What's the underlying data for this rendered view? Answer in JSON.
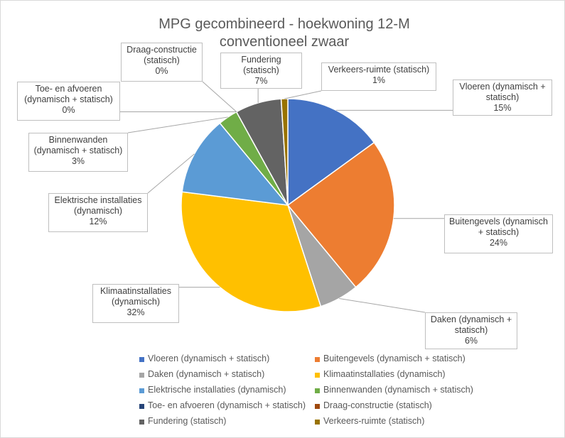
{
  "chart_data": {
    "type": "pie",
    "title": "MPG gecombineerd - hoekwoning 12-M conventioneel zwaar",
    "categories": [
      "Vloeren (dynamisch + statisch)",
      "Buitengevels (dynamisch + statisch)",
      "Daken (dynamisch + statisch)",
      "Klimaatinstallaties (dynamisch)",
      "Elektrische installaties (dynamisch)",
      "Binnenwanden (dynamisch + statisch)",
      "Toe- en afvoeren (dynamisch + statisch)",
      "Draag-constructie (statisch)",
      "Fundering (statisch)",
      "Verkeers-ruimte (statisch)"
    ],
    "values": [
      15,
      24,
      6,
      32,
      12,
      3,
      0,
      0,
      7,
      1
    ],
    "value_labels": [
      "15%",
      "24%",
      "6%",
      "32%",
      "12%",
      "3%",
      "0%",
      "0%",
      "7%",
      "1%"
    ],
    "colors": [
      "#4472c4",
      "#ed7d31",
      "#a5a5a5",
      "#ffc000",
      "#5b9bd5",
      "#70ad47",
      "#264478",
      "#9e480e",
      "#636363",
      "#997300"
    ],
    "legend": "bottom"
  }
}
